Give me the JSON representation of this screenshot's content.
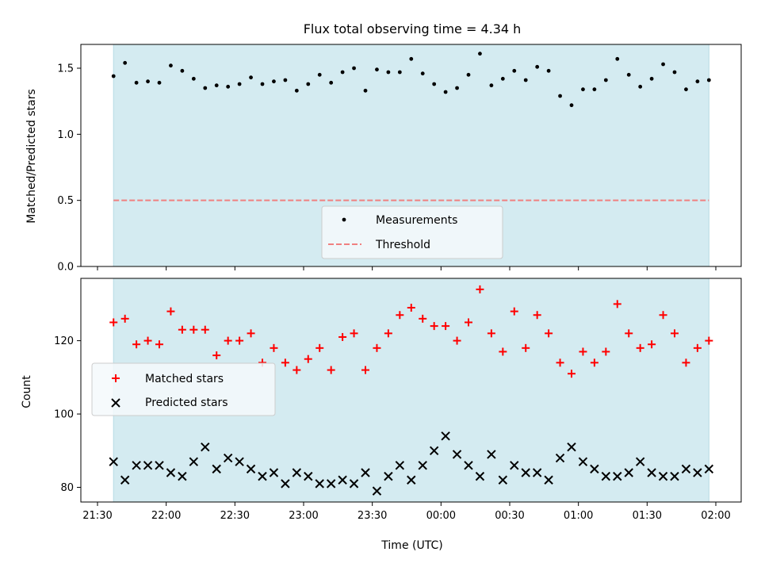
{
  "chart_data": {
    "title": "Flux total observing time = 4.34 h",
    "xlabel": "Time (UTC)",
    "x_tick_labels": [
      "21:30",
      "22:00",
      "22:30",
      "23:00",
      "23:30",
      "00:00",
      "00:30",
      "01:00",
      "01:30",
      "02:00"
    ],
    "shade_color": "#d4ebf1",
    "panels": [
      {
        "type": "scatter",
        "ylabel": "Matched/Predicted stars",
        "ylim": [
          0,
          1.68
        ],
        "yticks": [
          "0.0",
          "0.5",
          "1.0",
          "1.5"
        ],
        "threshold": 0.5,
        "legend": {
          "position": "bottom-center",
          "entries": [
            "Measurements",
            "Threshold"
          ]
        },
        "series": [
          {
            "name": "Measurements",
            "color": "#000000",
            "x": [
              "21:37",
              "21:42",
              "21:47",
              "21:52",
              "21:57",
              "22:02",
              "22:07",
              "22:12",
              "22:17",
              "22:22",
              "22:27",
              "22:32",
              "22:37",
              "22:42",
              "22:47",
              "22:52",
              "22:57",
              "23:02",
              "23:07",
              "23:12",
              "23:17",
              "23:22",
              "23:27",
              "23:32",
              "23:37",
              "23:42",
              "23:47",
              "23:52",
              "23:57",
              "00:02",
              "00:07",
              "00:12",
              "00:17",
              "00:22",
              "00:27",
              "00:32",
              "00:37",
              "00:42",
              "00:47",
              "00:52",
              "00:57",
              "01:02",
              "01:07",
              "01:12",
              "01:17",
              "01:22",
              "01:27",
              "01:32",
              "01:37",
              "01:42",
              "01:47",
              "01:52",
              "01:57"
            ],
            "values": [
              1.44,
              1.54,
              1.39,
              1.4,
              1.39,
              1.52,
              1.48,
              1.42,
              1.35,
              1.37,
              1.36,
              1.38,
              1.43,
              1.38,
              1.4,
              1.41,
              1.33,
              1.38,
              1.45,
              1.39,
              1.47,
              1.5,
              1.33,
              1.49,
              1.47,
              1.47,
              1.57,
              1.46,
              1.38,
              1.32,
              1.35,
              1.45,
              1.61,
              1.37,
              1.42,
              1.48,
              1.41,
              1.51,
              1.48,
              1.29,
              1.22,
              1.34,
              1.34,
              1.41,
              1.57,
              1.45,
              1.36,
              1.42,
              1.53,
              1.47,
              1.34,
              1.4,
              1.41
            ]
          },
          {
            "name": "Threshold",
            "color": "#f08080",
            "style": "dashed"
          }
        ]
      },
      {
        "type": "scatter",
        "ylabel": "Count",
        "ylim": [
          76,
          137
        ],
        "yticks": [
          "80",
          "100",
          "120"
        ],
        "legend": {
          "position": "center-left",
          "entries": [
            "Matched stars",
            "Predicted stars"
          ]
        },
        "series": [
          {
            "name": "Matched stars",
            "color": "#ff0000",
            "marker": "+",
            "x": [
              "21:37",
              "21:42",
              "21:47",
              "21:52",
              "21:57",
              "22:02",
              "22:07",
              "22:12",
              "22:17",
              "22:22",
              "22:27",
              "22:32",
              "22:37",
              "22:42",
              "22:47",
              "22:52",
              "22:57",
              "23:02",
              "23:07",
              "23:12",
              "23:17",
              "23:22",
              "23:27",
              "23:32",
              "23:37",
              "23:42",
              "23:47",
              "23:52",
              "23:57",
              "00:02",
              "00:07",
              "00:12",
              "00:17",
              "00:22",
              "00:27",
              "00:32",
              "00:37",
              "00:42",
              "00:47",
              "00:52",
              "00:57",
              "01:02",
              "01:07",
              "01:12",
              "01:17",
              "01:22",
              "01:27",
              "01:32",
              "01:37",
              "01:42",
              "01:47",
              "01:52",
              "01:57"
            ],
            "values": [
              125,
              126,
              119,
              120,
              119,
              128,
              123,
              123,
              123,
              116,
              120,
              120,
              122,
              114,
              118,
              114,
              112,
              115,
              118,
              112,
              121,
              122,
              112,
              118,
              122,
              127,
              129,
              126,
              124,
              124,
              120,
              125,
              134,
              122,
              117,
              128,
              118,
              127,
              122,
              114,
              111,
              117,
              114,
              117,
              130,
              122,
              118,
              119,
              127,
              122,
              114,
              118,
              120
            ]
          },
          {
            "name": "Predicted stars",
            "color": "#000000",
            "marker": "x",
            "x": [
              "21:37",
              "21:42",
              "21:47",
              "21:52",
              "21:57",
              "22:02",
              "22:07",
              "22:12",
              "22:17",
              "22:22",
              "22:27",
              "22:32",
              "22:37",
              "22:42",
              "22:47",
              "22:52",
              "22:57",
              "23:02",
              "23:07",
              "23:12",
              "23:17",
              "23:22",
              "23:27",
              "23:32",
              "23:37",
              "23:42",
              "23:47",
              "23:52",
              "23:57",
              "00:02",
              "00:07",
              "00:12",
              "00:17",
              "00:22",
              "00:27",
              "00:32",
              "00:37",
              "00:42",
              "00:47",
              "00:52",
              "00:57",
              "01:02",
              "01:07",
              "01:12",
              "01:17",
              "01:22",
              "01:27",
              "01:32",
              "01:37",
              "01:42",
              "01:47",
              "01:52",
              "01:57"
            ],
            "values": [
              87,
              82,
              86,
              86,
              86,
              84,
              83,
              87,
              91,
              85,
              88,
              87,
              85,
              83,
              84,
              81,
              84,
              83,
              81,
              81,
              82,
              81,
              84,
              79,
              83,
              86,
              82,
              86,
              90,
              94,
              89,
              86,
              83,
              89,
              82,
              86,
              84,
              84,
              82,
              88,
              91,
              87,
              85,
              83,
              83,
              84,
              87,
              84,
              83,
              83,
              85,
              84,
              85
            ]
          }
        ]
      }
    ]
  }
}
